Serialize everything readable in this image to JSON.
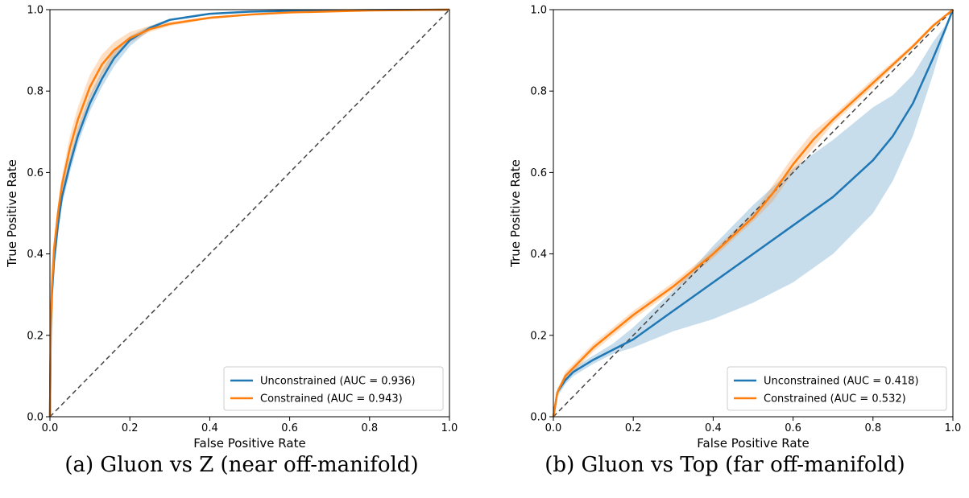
{
  "captions": {
    "a": "(a) Gluon vs Z (near off-manifold)",
    "b": "(b) Gluon vs Top (far off-manifold)"
  },
  "chart_data": [
    {
      "type": "line",
      "xlabel": "False Positive Rate",
      "ylabel": "True Positive Rate",
      "xlim": [
        0,
        1
      ],
      "ylim": [
        0,
        1
      ],
      "xticks": [
        "0.0",
        "0.2",
        "0.4",
        "0.6",
        "0.8",
        "1.0"
      ],
      "yticks": [
        "0.0",
        "0.2",
        "0.4",
        "0.6",
        "0.8",
        "1.0"
      ],
      "grid": false,
      "legend_position": "lower-right",
      "diagonal": {
        "x": [
          0,
          1
        ],
        "y": [
          0,
          1
        ],
        "color": "#444444",
        "style": "dashed"
      },
      "series": [
        {
          "name": "Unconstrained (AUC = 0.936)",
          "color": "#1f77b4",
          "x": [
            0,
            0.002,
            0.005,
            0.01,
            0.02,
            0.03,
            0.05,
            0.07,
            0.1,
            0.13,
            0.16,
            0.2,
            0.25,
            0.3,
            0.4,
            0.5,
            0.6,
            0.8,
            1.0
          ],
          "y": [
            0,
            0.2,
            0.3,
            0.38,
            0.47,
            0.54,
            0.62,
            0.69,
            0.77,
            0.83,
            0.88,
            0.925,
            0.955,
            0.975,
            0.99,
            0.995,
            0.997,
            0.999,
            1.0
          ],
          "band_lower": [
            0,
            0.18,
            0.28,
            0.36,
            0.45,
            0.52,
            0.6,
            0.67,
            0.75,
            0.81,
            0.86,
            0.91,
            0.95,
            0.972,
            0.988,
            0.994,
            0.996,
            0.999,
            1.0
          ],
          "band_upper": [
            0,
            0.22,
            0.32,
            0.4,
            0.49,
            0.56,
            0.64,
            0.71,
            0.79,
            0.85,
            0.9,
            0.935,
            0.96,
            0.978,
            0.992,
            0.996,
            0.998,
            0.999,
            1.0
          ]
        },
        {
          "name": "Constrained (AUC = 0.943)",
          "color": "#ff7f0e",
          "x": [
            0,
            0.002,
            0.005,
            0.01,
            0.02,
            0.03,
            0.05,
            0.07,
            0.1,
            0.13,
            0.16,
            0.2,
            0.25,
            0.3,
            0.4,
            0.5,
            0.6,
            0.8,
            1.0
          ],
          "y": [
            0,
            0.22,
            0.32,
            0.41,
            0.5,
            0.57,
            0.66,
            0.73,
            0.81,
            0.865,
            0.9,
            0.93,
            0.952,
            0.965,
            0.98,
            0.988,
            0.993,
            0.998,
            1.0
          ],
          "band_lower": [
            0,
            0.2,
            0.3,
            0.39,
            0.48,
            0.55,
            0.63,
            0.7,
            0.78,
            0.84,
            0.88,
            0.92,
            0.945,
            0.96,
            0.977,
            0.986,
            0.992,
            0.998,
            1.0
          ],
          "band_upper": [
            0,
            0.24,
            0.34,
            0.43,
            0.52,
            0.59,
            0.69,
            0.76,
            0.84,
            0.89,
            0.92,
            0.945,
            0.96,
            0.97,
            0.983,
            0.99,
            0.994,
            0.998,
            1.0
          ]
        }
      ]
    },
    {
      "type": "line",
      "xlabel": "False Positive Rate",
      "ylabel": "True Positive Rate",
      "xlim": [
        0,
        1
      ],
      "ylim": [
        0,
        1
      ],
      "xticks": [
        "0.0",
        "0.2",
        "0.4",
        "0.6",
        "0.8",
        "1.0"
      ],
      "yticks": [
        "0.0",
        "0.2",
        "0.4",
        "0.6",
        "0.8",
        "1.0"
      ],
      "grid": false,
      "legend_position": "lower-right",
      "diagonal": {
        "x": [
          0,
          1
        ],
        "y": [
          0,
          1
        ],
        "color": "#444444",
        "style": "dashed"
      },
      "series": [
        {
          "name": "Unconstrained (AUC = 0.418)",
          "color": "#1f77b4",
          "x": [
            0,
            0.01,
            0.03,
            0.05,
            0.1,
            0.15,
            0.2,
            0.3,
            0.4,
            0.5,
            0.6,
            0.7,
            0.8,
            0.85,
            0.9,
            0.95,
            0.98,
            1.0
          ],
          "y": [
            0,
            0.06,
            0.09,
            0.11,
            0.14,
            0.165,
            0.19,
            0.26,
            0.33,
            0.4,
            0.47,
            0.54,
            0.63,
            0.69,
            0.77,
            0.88,
            0.95,
            1.0
          ],
          "band_lower": [
            0,
            0.05,
            0.08,
            0.1,
            0.13,
            0.155,
            0.17,
            0.21,
            0.24,
            0.28,
            0.33,
            0.4,
            0.5,
            0.58,
            0.69,
            0.84,
            0.94,
            1.0
          ],
          "band_upper": [
            0,
            0.07,
            0.1,
            0.12,
            0.15,
            0.18,
            0.22,
            0.31,
            0.42,
            0.52,
            0.61,
            0.68,
            0.76,
            0.79,
            0.84,
            0.92,
            0.96,
            1.0
          ]
        },
        {
          "name": "Constrained (AUC = 0.532)",
          "color": "#ff7f0e",
          "x": [
            0,
            0.01,
            0.03,
            0.05,
            0.1,
            0.15,
            0.2,
            0.3,
            0.4,
            0.5,
            0.55,
            0.6,
            0.65,
            0.7,
            0.8,
            0.9,
            0.95,
            1.0
          ],
          "y": [
            0,
            0.06,
            0.1,
            0.12,
            0.17,
            0.21,
            0.25,
            0.32,
            0.4,
            0.49,
            0.55,
            0.62,
            0.68,
            0.73,
            0.82,
            0.91,
            0.96,
            1.0
          ],
          "band_lower": [
            0,
            0.055,
            0.09,
            0.11,
            0.16,
            0.2,
            0.24,
            0.31,
            0.39,
            0.48,
            0.53,
            0.6,
            0.66,
            0.72,
            0.81,
            0.905,
            0.955,
            1.0
          ],
          "band_upper": [
            0,
            0.065,
            0.11,
            0.13,
            0.18,
            0.22,
            0.26,
            0.33,
            0.41,
            0.5,
            0.57,
            0.64,
            0.7,
            0.74,
            0.83,
            0.915,
            0.965,
            1.0
          ]
        }
      ]
    }
  ]
}
